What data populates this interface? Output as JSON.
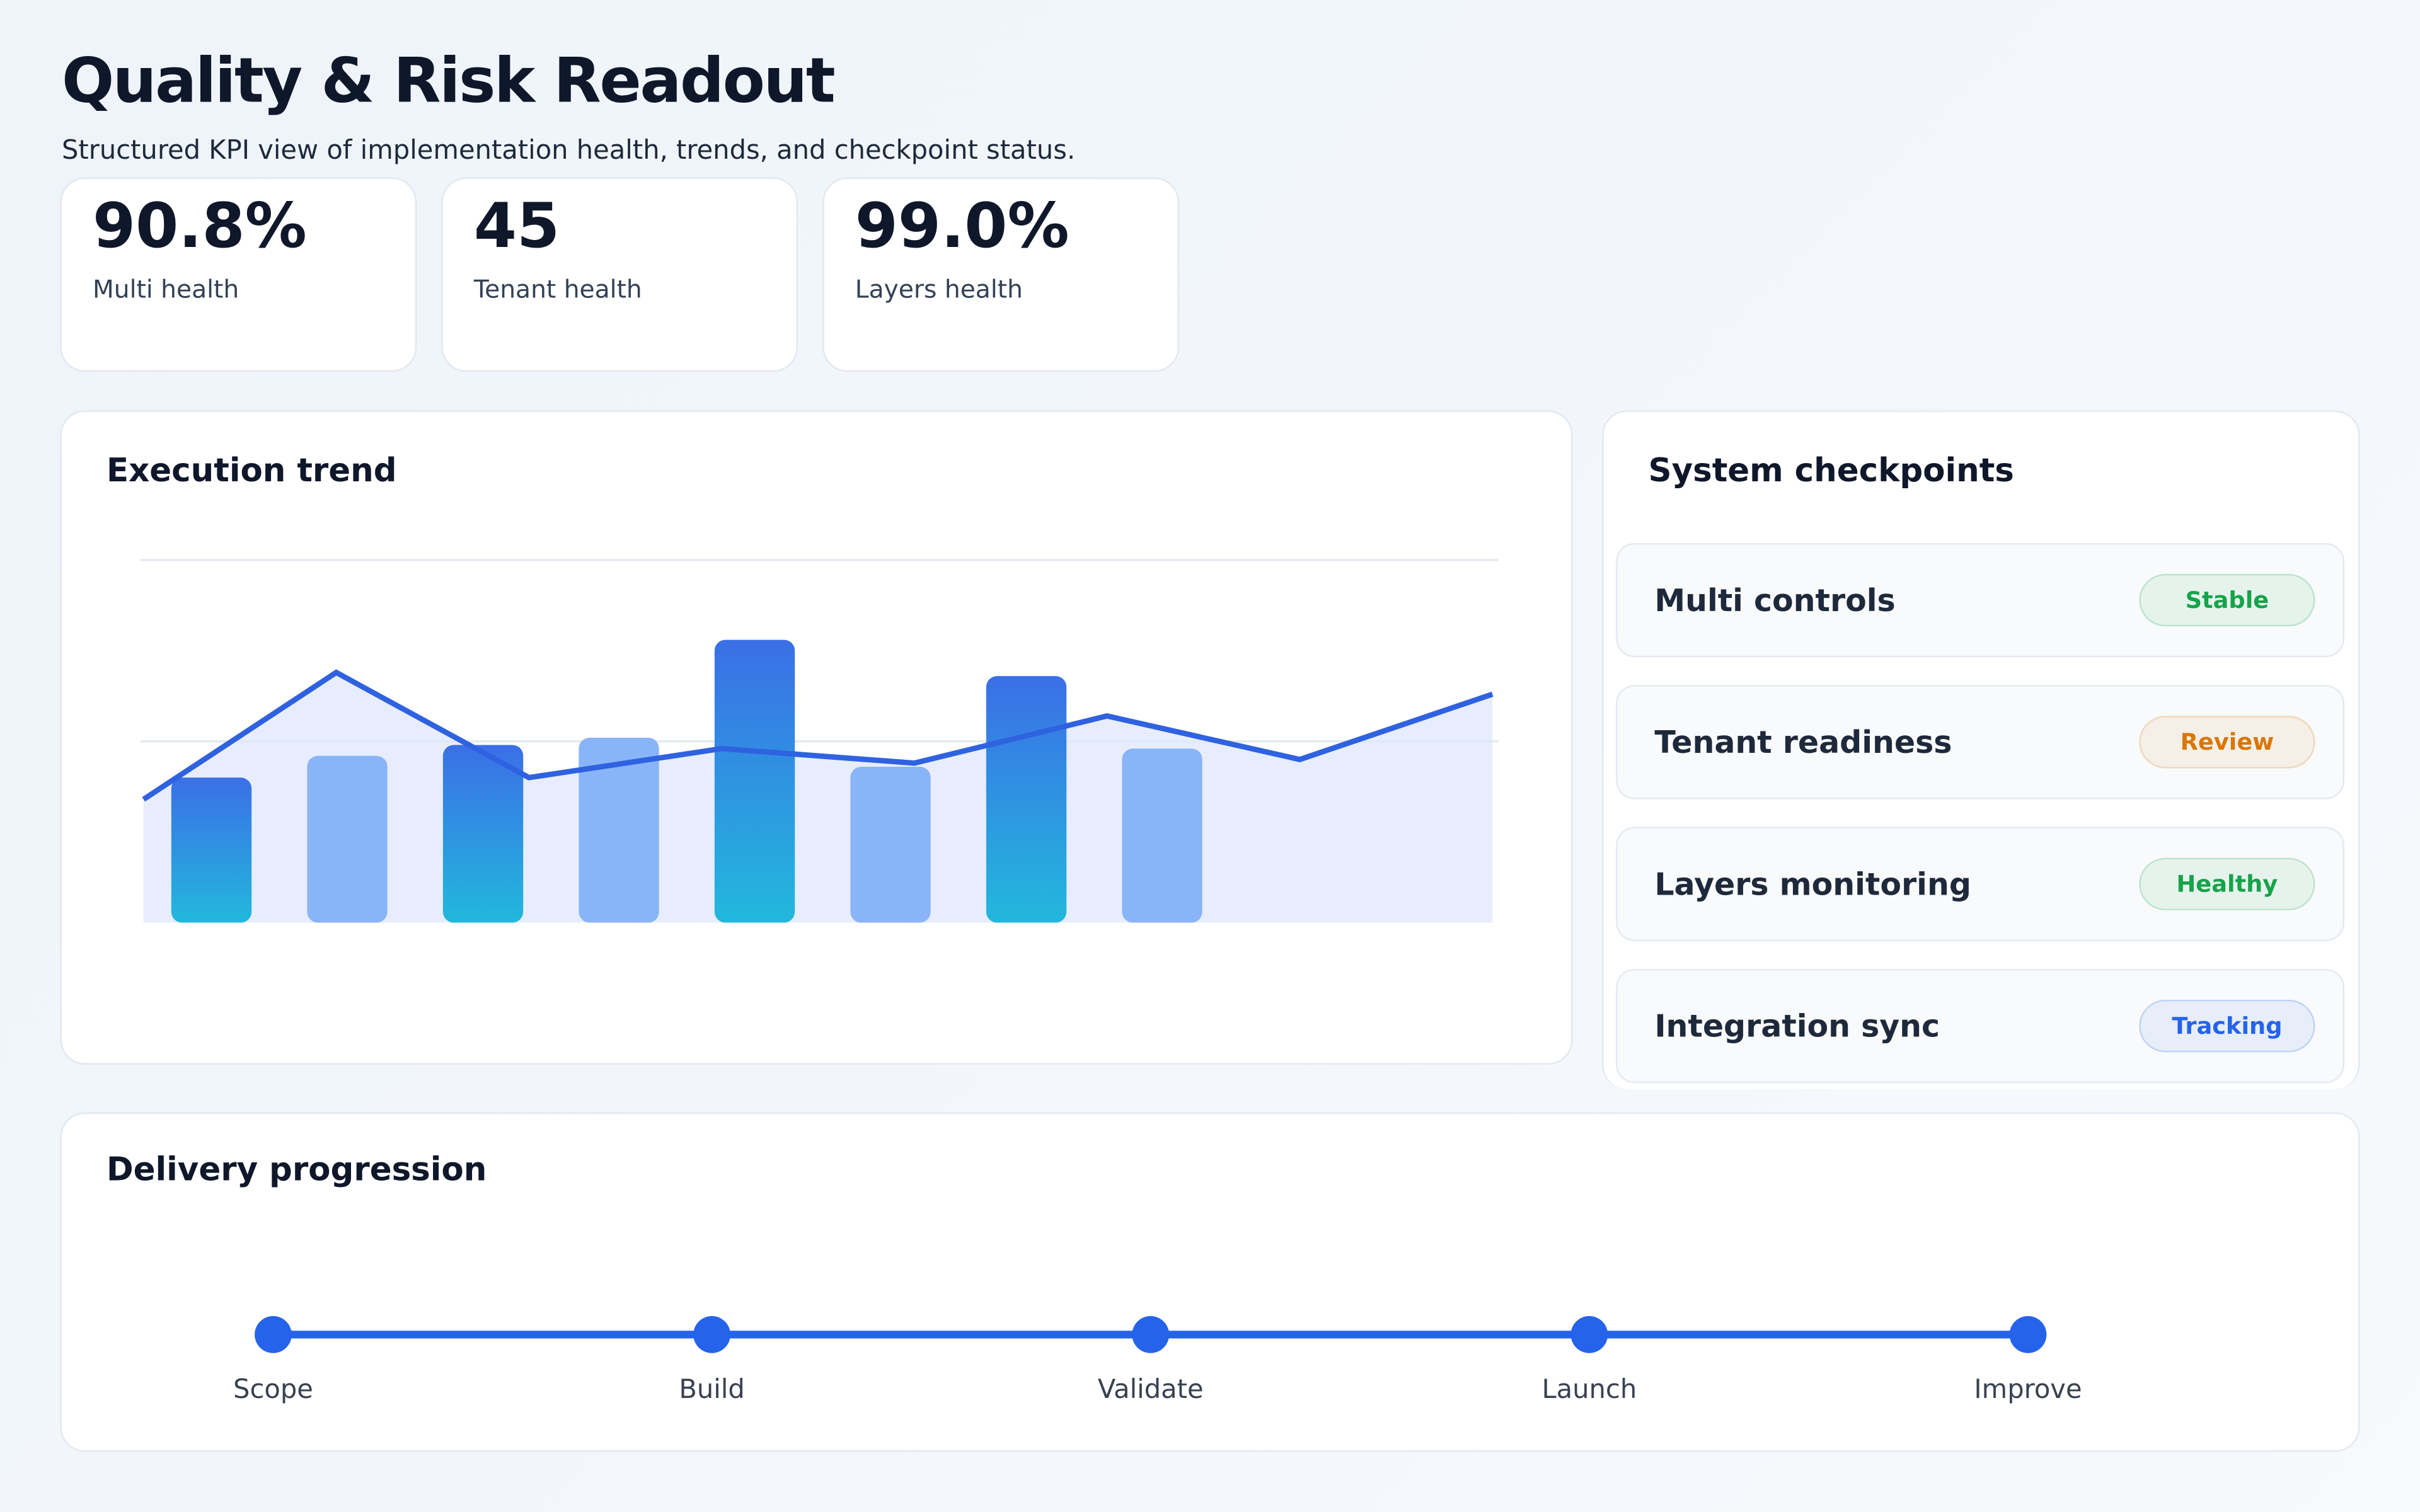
{
  "header": {
    "title": "Quality & Risk Readout",
    "subtitle": "Structured KPI view of implementation health, trends, and checkpoint status."
  },
  "kpis": [
    {
      "value": "90.8%",
      "label": "Multi health"
    },
    {
      "value": "45",
      "label": "Tenant health"
    },
    {
      "value": "99.0%",
      "label": "Layers health"
    }
  ],
  "trend": {
    "title": "Execution trend",
    "chart_data": {
      "type": "bar-line",
      "ylim": [
        0,
        100
      ],
      "yticks": [
        50,
        100
      ],
      "grid": true,
      "series": [
        {
          "type": "bar",
          "colors": [
            "#2f6fe4",
            "#8ab4f8"
          ],
          "values": [
            40,
            46,
            49,
            51,
            78,
            43,
            68,
            48
          ]
        },
        {
          "type": "line",
          "color": "#2f62e0",
          "values": [
            34,
            69,
            40,
            48,
            44,
            57,
            45,
            63
          ]
        }
      ]
    }
  },
  "checkpoints": {
    "title": "System checkpoints",
    "items": [
      {
        "name": "Multi controls",
        "status": "Stable",
        "color": "#16a34a"
      },
      {
        "name": "Tenant readiness",
        "status": "Review",
        "color": "#d97706"
      },
      {
        "name": "Layers monitoring",
        "status": "Healthy",
        "color": "#16a34a"
      },
      {
        "name": "Integration sync",
        "status": "Tracking",
        "color": "#2563eb"
      }
    ]
  },
  "progression": {
    "title": "Delivery progression",
    "steps": [
      "Scope",
      "Build",
      "Validate",
      "Launch",
      "Improve"
    ]
  }
}
